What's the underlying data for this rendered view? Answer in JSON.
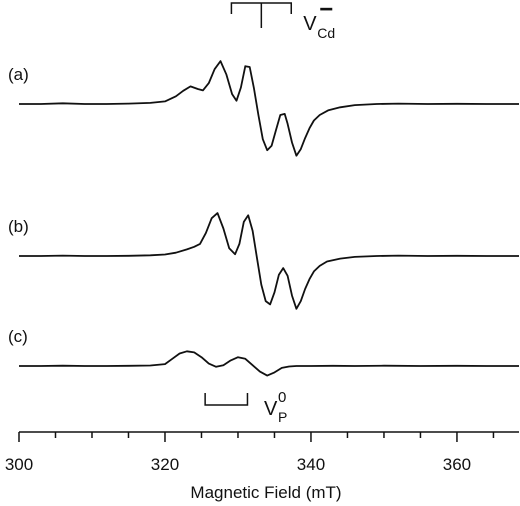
{
  "chart_data": {
    "type": "line",
    "xlabel": "Magnetic Field (mT)",
    "ylabel": "",
    "xlim": [
      300,
      368.5
    ],
    "xticks_major": [
      300,
      320,
      340,
      360
    ],
    "xticks_minor_step": 5,
    "grid": false,
    "legend": "none",
    "series": [
      {
        "name": "(a)",
        "x": [
          300,
          303,
          306,
          309,
          312,
          315,
          318,
          320,
          321.5,
          322.5,
          323.5,
          324.5,
          325.2,
          326,
          326.8,
          327.6,
          328.4,
          329.2,
          329.8,
          330.4,
          331,
          331.6,
          332.2,
          332.8,
          333.4,
          334,
          334.6,
          335.2,
          335.8,
          336.4,
          336.8,
          337.4,
          338,
          338.6,
          339.2,
          339.8,
          340.4,
          341.2,
          342.4,
          344,
          346,
          349,
          352,
          356,
          360,
          364,
          368.5
        ],
        "y": [
          0,
          0,
          0.03,
          0,
          0,
          0.02,
          0.05,
          0.12,
          0.35,
          0.6,
          0.8,
          0.68,
          0.62,
          0.95,
          1.58,
          1.95,
          1.35,
          0.45,
          0.15,
          0.75,
          1.72,
          1.68,
          0.7,
          -0.5,
          -1.6,
          -2.1,
          -1.9,
          -1.2,
          -0.5,
          -0.45,
          -0.9,
          -1.75,
          -2.35,
          -2.05,
          -1.55,
          -1.1,
          -0.75,
          -0.5,
          -0.28,
          -0.15,
          -0.05,
          0,
          0.02,
          0,
          0.01,
          0,
          0
        ]
      },
      {
        "name": "(b)",
        "x": [
          300,
          303,
          306,
          309,
          312,
          315,
          318,
          320,
          321.5,
          323,
          324,
          324.8,
          325.6,
          326.4,
          327.2,
          328,
          328.8,
          329.6,
          330.2,
          330.8,
          331.4,
          332,
          332.6,
          333.2,
          333.8,
          334.4,
          335,
          335.6,
          336.2,
          336.8,
          337.4,
          338,
          338.6,
          339.2,
          339.8,
          340.4,
          341.2,
          342.2,
          344,
          346,
          349,
          352,
          356,
          360,
          364,
          368.5
        ],
        "y": [
          0,
          0,
          0.02,
          0,
          0,
          0.01,
          0.03,
          0.07,
          0.15,
          0.3,
          0.42,
          0.55,
          1.05,
          1.72,
          1.95,
          1.25,
          0.35,
          0.08,
          0.55,
          1.55,
          1.85,
          1.15,
          -0.1,
          -1.3,
          -2.05,
          -2.2,
          -1.65,
          -0.85,
          -0.55,
          -0.9,
          -1.8,
          -2.4,
          -2.05,
          -1.5,
          -1.05,
          -0.7,
          -0.45,
          -0.25,
          -0.12,
          -0.04,
          0,
          0.02,
          0,
          0.01,
          0,
          0
        ]
      },
      {
        "name": "(c)",
        "x": [
          300,
          303,
          306,
          309,
          312,
          315,
          318,
          320,
          321,
          322,
          323,
          324,
          325,
          326,
          327,
          328,
          329,
          330,
          331,
          332,
          333,
          334,
          335,
          336,
          337,
          338,
          340,
          343,
          346,
          350,
          355,
          360,
          364,
          368.5
        ],
        "y": [
          0,
          0,
          0.02,
          0,
          0,
          0.01,
          0.03,
          0.12,
          0.45,
          0.78,
          0.92,
          0.85,
          0.55,
          0.15,
          -0.05,
          0.05,
          0.35,
          0.55,
          0.45,
          0.05,
          -0.35,
          -0.6,
          -0.4,
          -0.12,
          -0.03,
          0,
          0,
          0.01,
          0,
          0.02,
          0,
          0.01,
          0,
          0
        ]
      }
    ],
    "annotations": [
      {
        "label_main": "V",
        "label_sub": "Cd",
        "label_sup": "−",
        "type": "stick-diagram-above",
        "x_center": 333.2,
        "x_outer": [
          329.1,
          337.3
        ]
      },
      {
        "label_main": "V",
        "label_sub": "P",
        "label_sup": "0",
        "type": "bracket-below",
        "x": [
          325.5,
          331.3
        ]
      }
    ]
  },
  "series_labels": [
    "(a)",
    "(b)",
    "(c)"
  ]
}
